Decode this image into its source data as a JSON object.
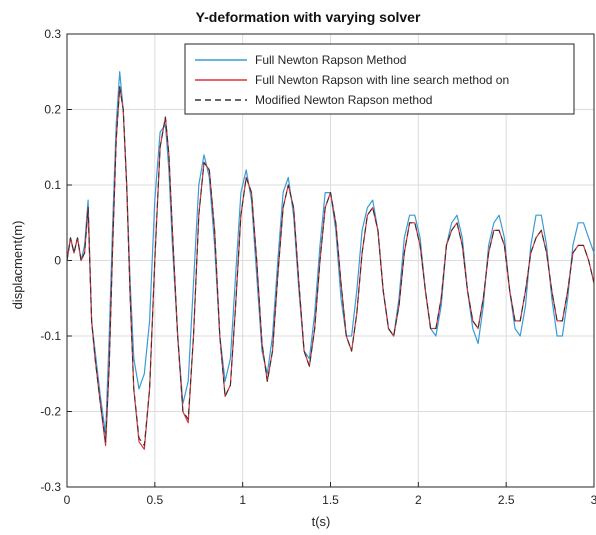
{
  "chart_data": {
    "type": "line",
    "title": "Y-deformation with varying solver",
    "xlabel": "t(s)",
    "ylabel": "displacment(m)",
    "xlim": [
      0,
      3
    ],
    "ylim": [
      -0.3,
      0.3
    ],
    "xticks": [
      0,
      0.5,
      1,
      1.5,
      2,
      2.5,
      3
    ],
    "xtick_labels": [
      "0",
      "0.5",
      "1",
      "1.5",
      "2",
      "2.5",
      "3"
    ],
    "yticks": [
      -0.3,
      -0.2,
      -0.1,
      0,
      0.1,
      0.2,
      0.3
    ],
    "ytick_labels": [
      "-0.3",
      "-0.2",
      "-0.1",
      "0",
      "0.1",
      "0.2",
      "0.3"
    ],
    "grid": true,
    "legend_position": "top-right",
    "series": [
      {
        "name": "Full Newton Rapson Method",
        "color": "#3a9bd5",
        "style": "solid",
        "x": [
          0,
          0.02,
          0.04,
          0.06,
          0.08,
          0.1,
          0.12,
          0.14,
          0.16,
          0.19,
          0.22,
          0.24,
          0.26,
          0.28,
          0.3,
          0.32,
          0.34,
          0.36,
          0.38,
          0.41,
          0.44,
          0.47,
          0.5,
          0.53,
          0.56,
          0.58,
          0.6,
          0.63,
          0.66,
          0.69,
          0.72,
          0.75,
          0.78,
          0.81,
          0.84,
          0.87,
          0.9,
          0.93,
          0.96,
          0.99,
          1.02,
          1.05,
          1.08,
          1.11,
          1.14,
          1.17,
          1.2,
          1.23,
          1.26,
          1.29,
          1.32,
          1.35,
          1.38,
          1.41,
          1.44,
          1.47,
          1.5,
          1.53,
          1.56,
          1.59,
          1.62,
          1.65,
          1.68,
          1.71,
          1.74,
          1.77,
          1.8,
          1.83,
          1.86,
          1.89,
          1.92,
          1.95,
          1.98,
          2.01,
          2.04,
          2.07,
          2.1,
          2.13,
          2.16,
          2.19,
          2.22,
          2.25,
          2.28,
          2.31,
          2.34,
          2.37,
          2.4,
          2.43,
          2.46,
          2.49,
          2.52,
          2.55,
          2.58,
          2.61,
          2.64,
          2.67,
          2.7,
          2.73,
          2.76,
          2.79,
          2.82,
          2.85,
          2.88,
          2.91,
          2.94,
          2.97,
          3.0
        ],
        "y": [
          0.0,
          0.03,
          0.01,
          0.03,
          0.0,
          0.02,
          0.08,
          -0.08,
          -0.12,
          -0.18,
          -0.23,
          -0.1,
          0.05,
          0.18,
          0.25,
          0.2,
          0.1,
          -0.03,
          -0.13,
          -0.17,
          -0.15,
          -0.08,
          0.08,
          0.17,
          0.18,
          0.12,
          0.02,
          -0.1,
          -0.19,
          -0.16,
          -0.03,
          0.1,
          0.14,
          0.11,
          0.02,
          -0.1,
          -0.16,
          -0.13,
          -0.02,
          0.09,
          0.12,
          0.08,
          -0.02,
          -0.12,
          -0.15,
          -0.1,
          0.0,
          0.09,
          0.11,
          0.06,
          -0.04,
          -0.12,
          -0.13,
          -0.07,
          0.02,
          0.09,
          0.09,
          0.04,
          -0.05,
          -0.1,
          -0.1,
          -0.04,
          0.04,
          0.07,
          0.08,
          0.04,
          -0.04,
          -0.09,
          -0.1,
          -0.05,
          0.03,
          0.06,
          0.06,
          0.03,
          -0.04,
          -0.09,
          -0.1,
          -0.06,
          0.02,
          0.05,
          0.06,
          0.03,
          -0.04,
          -0.09,
          -0.11,
          -0.06,
          0.02,
          0.05,
          0.06,
          0.03,
          -0.04,
          -0.09,
          -0.1,
          -0.06,
          0.02,
          0.06,
          0.06,
          0.02,
          -0.05,
          -0.1,
          -0.1,
          -0.05,
          0.02,
          0.05,
          0.05,
          0.03,
          0.01
        ]
      },
      {
        "name": "Full Newton Rapson with line search method on",
        "color": "#e0303a",
        "style": "solid",
        "x": [
          0,
          0.02,
          0.04,
          0.06,
          0.08,
          0.1,
          0.12,
          0.14,
          0.16,
          0.19,
          0.22,
          0.24,
          0.26,
          0.28,
          0.3,
          0.32,
          0.34,
          0.36,
          0.38,
          0.41,
          0.44,
          0.47,
          0.5,
          0.53,
          0.56,
          0.58,
          0.6,
          0.63,
          0.66,
          0.69,
          0.72,
          0.75,
          0.78,
          0.81,
          0.84,
          0.87,
          0.9,
          0.93,
          0.96,
          0.99,
          1.02,
          1.05,
          1.08,
          1.11,
          1.14,
          1.17,
          1.2,
          1.23,
          1.26,
          1.29,
          1.32,
          1.35,
          1.38,
          1.41,
          1.44,
          1.47,
          1.5,
          1.53,
          1.56,
          1.59,
          1.62,
          1.65,
          1.68,
          1.71,
          1.74,
          1.77,
          1.8,
          1.83,
          1.86,
          1.89,
          1.92,
          1.95,
          1.98,
          2.01,
          2.04,
          2.07,
          2.1,
          2.13,
          2.16,
          2.19,
          2.22,
          2.25,
          2.28,
          2.31,
          2.34,
          2.37,
          2.4,
          2.43,
          2.46,
          2.49,
          2.52,
          2.55,
          2.58,
          2.61,
          2.64,
          2.67,
          2.7,
          2.73,
          2.76,
          2.79,
          2.82,
          2.85,
          2.88,
          2.91,
          2.94,
          2.97,
          3.0
        ],
        "y": [
          0.0,
          0.03,
          0.01,
          0.03,
          0.0,
          0.01,
          0.07,
          -0.08,
          -0.13,
          -0.19,
          -0.245,
          -0.14,
          0.02,
          0.16,
          0.23,
          0.2,
          0.1,
          -0.05,
          -0.17,
          -0.24,
          -0.25,
          -0.17,
          0.0,
          0.15,
          0.19,
          0.14,
          0.04,
          -0.1,
          -0.2,
          -0.215,
          -0.1,
          0.06,
          0.13,
          0.12,
          0.04,
          -0.1,
          -0.18,
          -0.165,
          -0.06,
          0.06,
          0.11,
          0.09,
          0.0,
          -0.11,
          -0.16,
          -0.12,
          -0.02,
          0.07,
          0.1,
          0.07,
          -0.03,
          -0.12,
          -0.14,
          -0.09,
          0.0,
          0.07,
          0.09,
          0.05,
          -0.03,
          -0.1,
          -0.12,
          -0.07,
          0.01,
          0.06,
          0.07,
          0.04,
          -0.04,
          -0.09,
          -0.1,
          -0.06,
          0.01,
          0.05,
          0.05,
          0.02,
          -0.04,
          -0.09,
          -0.09,
          -0.05,
          0.02,
          0.04,
          0.05,
          0.02,
          -0.04,
          -0.08,
          -0.09,
          -0.05,
          0.01,
          0.04,
          0.04,
          0.02,
          -0.04,
          -0.08,
          -0.08,
          -0.04,
          0.01,
          0.03,
          0.04,
          0.01,
          -0.04,
          -0.08,
          -0.08,
          -0.04,
          0.01,
          0.02,
          0.02,
          0.0,
          -0.03
        ]
      },
      {
        "name": "Modified Newton Rapson method",
        "color": "#333333",
        "style": "dashed",
        "x": [
          0,
          0.02,
          0.04,
          0.06,
          0.08,
          0.1,
          0.12,
          0.14,
          0.16,
          0.19,
          0.22,
          0.24,
          0.26,
          0.28,
          0.3,
          0.32,
          0.34,
          0.36,
          0.38,
          0.41,
          0.44,
          0.47,
          0.5,
          0.53,
          0.56,
          0.58,
          0.6,
          0.63,
          0.66,
          0.69,
          0.72,
          0.75,
          0.78,
          0.81,
          0.84,
          0.87,
          0.9,
          0.93,
          0.96,
          0.99,
          1.02,
          1.05,
          1.08,
          1.11,
          1.14,
          1.17,
          1.2,
          1.23,
          1.26,
          1.29,
          1.32,
          1.35,
          1.38,
          1.41,
          1.44,
          1.47,
          1.5,
          1.53,
          1.56,
          1.59,
          1.62,
          1.65,
          1.68,
          1.71,
          1.74,
          1.77,
          1.8,
          1.83,
          1.86,
          1.89,
          1.92,
          1.95,
          1.98,
          2.01,
          2.04,
          2.07,
          2.1,
          2.13,
          2.16,
          2.19,
          2.22,
          2.25,
          2.28,
          2.31,
          2.34,
          2.37,
          2.4,
          2.43,
          2.46,
          2.49,
          2.52,
          2.55,
          2.58,
          2.61,
          2.64,
          2.67,
          2.7,
          2.73,
          2.76,
          2.79,
          2.82,
          2.85,
          2.88,
          2.91,
          2.94,
          2.97,
          3.0
        ],
        "y": [
          0.0,
          0.03,
          0.01,
          0.03,
          0.0,
          0.01,
          0.07,
          -0.08,
          -0.13,
          -0.19,
          -0.24,
          -0.14,
          0.02,
          0.16,
          0.23,
          0.2,
          0.1,
          -0.05,
          -0.17,
          -0.235,
          -0.245,
          -0.17,
          0.0,
          0.15,
          0.19,
          0.14,
          0.04,
          -0.1,
          -0.2,
          -0.21,
          -0.1,
          0.06,
          0.13,
          0.12,
          0.04,
          -0.1,
          -0.18,
          -0.165,
          -0.06,
          0.06,
          0.11,
          0.09,
          0.0,
          -0.11,
          -0.16,
          -0.12,
          -0.02,
          0.07,
          0.1,
          0.07,
          -0.03,
          -0.12,
          -0.14,
          -0.09,
          0.0,
          0.07,
          0.09,
          0.05,
          -0.03,
          -0.1,
          -0.12,
          -0.07,
          0.01,
          0.06,
          0.07,
          0.04,
          -0.04,
          -0.09,
          -0.1,
          -0.06,
          0.01,
          0.05,
          0.05,
          0.02,
          -0.04,
          -0.09,
          -0.09,
          -0.05,
          0.02,
          0.04,
          0.05,
          0.02,
          -0.04,
          -0.08,
          -0.09,
          -0.05,
          0.01,
          0.04,
          0.04,
          0.02,
          -0.04,
          -0.08,
          -0.08,
          -0.04,
          0.01,
          0.03,
          0.04,
          0.01,
          -0.04,
          -0.08,
          -0.08,
          -0.04,
          0.01,
          0.02,
          0.02,
          0.0,
          -0.03
        ]
      }
    ]
  }
}
